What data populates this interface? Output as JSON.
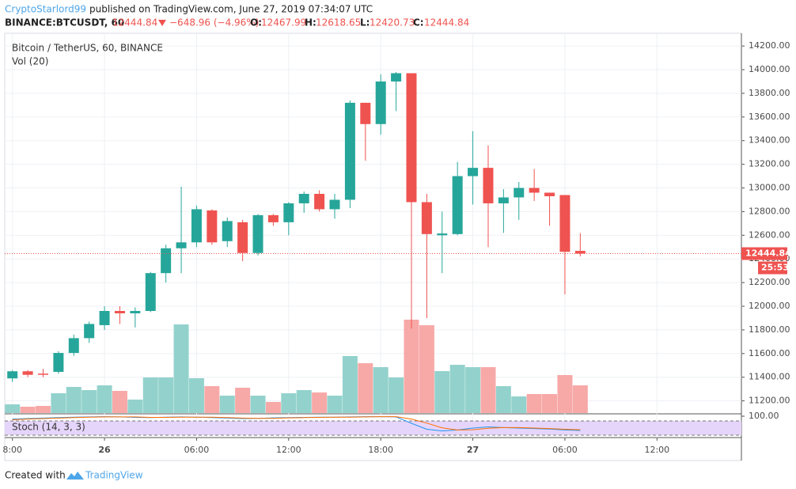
{
  "header": {
    "author": "CryptoStarlord99",
    "published": "published on TradingView.com, June 27, 2019 07:34:07 UTC",
    "symbol": "BINANCE:BTCUSDT, 60",
    "change": "−648.96 (−4.96%)",
    "o_label": "O:",
    "h_label": "H:",
    "l_label": "L:",
    "c_label": "C:"
  },
  "footer": {
    "created": "Created with",
    "brand": "TradingView"
  },
  "chart_data": {
    "type": "candlestick",
    "title": "Bitcoin / TetherUS, 60, BINANCE",
    "x": [
      0,
      1,
      2,
      3,
      4,
      5,
      6,
      7,
      8,
      9,
      10,
      11,
      12,
      13,
      14,
      15,
      16,
      17,
      18,
      19,
      20,
      21,
      22,
      23,
      24,
      25,
      26,
      27,
      28,
      29,
      30,
      31,
      32,
      33,
      34,
      35,
      36,
      37
    ],
    "open": [
      11390,
      11450,
      11430,
      11445,
      11605,
      11730,
      11840,
      11960,
      11940,
      11960,
      12280,
      12490,
      12540,
      12810,
      12550,
      12710,
      12450,
      12770,
      12710,
      12870,
      12950,
      12820,
      12900,
      13720,
      13540,
      13900,
      13970,
      12880,
      12600,
      12610,
      13100,
      13170,
      12870,
      12920,
      13000,
      12960,
      12940,
      12467.99
    ],
    "high": [
      11460,
      11460,
      11470,
      11620,
      11760,
      11870,
      12000,
      12000,
      11990,
      12290,
      12520,
      13010,
      12850,
      12820,
      12750,
      12730,
      12780,
      12780,
      12880,
      12970,
      12980,
      12950,
      13740,
      13720,
      13960,
      13980,
      13970,
      12950,
      12800,
      13220,
      13480,
      13360,
      12990,
      13050,
      13160,
      12960,
      12940,
      12618.65
    ],
    "low": [
      11360,
      11400,
      11400,
      11430,
      11580,
      11690,
      11800,
      11850,
      11820,
      11950,
      12200,
      12280,
      12500,
      12520,
      12500,
      12380,
      12430,
      12680,
      12600,
      12790,
      12800,
      12740,
      12830,
      13230,
      13450,
      13650,
      11810,
      11900,
      12280,
      12600,
      12860,
      12500,
      12620,
      12730,
      12890,
      12680,
      12100,
      12420.73
    ],
    "close": [
      11450,
      11420,
      11420,
      11605,
      11730,
      11850,
      11960,
      11940,
      11960,
      12280,
      12490,
      12540,
      12820,
      12540,
      12720,
      12450,
      12770,
      12710,
      12870,
      12950,
      12820,
      12900,
      13720,
      13540,
      13900,
      13970,
      12880,
      12610,
      12615,
      13100,
      13170,
      12870,
      12920,
      13000,
      12960,
      12930,
      12460,
      12444.84
    ],
    "up_color": "#26a69a",
    "down_color": "#ef5350",
    "volume": {
      "name": "Vol (20)",
      "up_color": "#93d2cc",
      "down_color": "#f7a9a7",
      "values": [
        11,
        8,
        9,
        25,
        33,
        29,
        35,
        28,
        17,
        45,
        45,
        112,
        44,
        34,
        22,
        32,
        22,
        14,
        25,
        29,
        26,
        22,
        72,
        63,
        58,
        45,
        118,
        111,
        53,
        61,
        58,
        58,
        34,
        21,
        24,
        24,
        48,
        35
      ]
    },
    "stoch": {
      "name": "Stoch (14, 3, 3)",
      "ylim": [
        10,
        110
      ],
      "yticks": [
        {
          "value": 100,
          "label": "100.00"
        }
      ],
      "bands": [
        80,
        20
      ],
      "band_color": "#e6d5fa",
      "series": [
        {
          "color": "#2196f3",
          "values": [
            88,
            90,
            92,
            94,
            96,
            97,
            98,
            97,
            95,
            94,
            96,
            97,
            96,
            94,
            92,
            90,
            91,
            93,
            94,
            95,
            96,
            96,
            97,
            98,
            98,
            97,
            70,
            45,
            38,
            42,
            50,
            55,
            52,
            50,
            48,
            46,
            42,
            40
          ]
        },
        {
          "color": "#ff6d00",
          "values": [
            85,
            88,
            90,
            92,
            94,
            96,
            97,
            97,
            97,
            95,
            95,
            96,
            96,
            96,
            94,
            92,
            91,
            91,
            93,
            94,
            95,
            96,
            96,
            97,
            98,
            98,
            88,
            71,
            51,
            42,
            43,
            49,
            52,
            52,
            50,
            48,
            45,
            43
          ]
        }
      ]
    },
    "countdown": "25:53",
    "ylim": [
      11097,
      14308
    ],
    "yticks": [
      {
        "value": 11200,
        "label": "11200.00"
      },
      {
        "value": 11400,
        "label": "11400.00"
      },
      {
        "value": 11600,
        "label": "11600.00"
      },
      {
        "value": 11800,
        "label": "11800.00"
      },
      {
        "value": 12000,
        "label": "12000.00"
      },
      {
        "value": 12200,
        "label": "12200.00"
      },
      {
        "value": 12400,
        "label": "12400.00"
      },
      {
        "value": 12600,
        "label": "12600.00"
      },
      {
        "value": 12800,
        "label": "12800.00"
      },
      {
        "value": 13000,
        "label": "13000.00"
      },
      {
        "value": 13200,
        "label": "13200.00"
      },
      {
        "value": 13400,
        "label": "13400.00"
      },
      {
        "value": 13600,
        "label": "13600.00"
      },
      {
        "value": 13800,
        "label": "13800.00"
      },
      {
        "value": 14000,
        "label": "14000.00"
      },
      {
        "value": 14200,
        "label": "14200.00"
      }
    ],
    "xlim": [
      -0.5,
      47.5
    ],
    "xticks": [
      {
        "value": 0,
        "label": "8:00"
      },
      {
        "value": 6,
        "label": "26"
      },
      {
        "value": 12,
        "label": "06:00"
      },
      {
        "value": 18,
        "label": "12:00"
      },
      {
        "value": 24,
        "label": "18:00"
      },
      {
        "value": 30,
        "label": "27"
      },
      {
        "value": 36,
        "label": "06:00"
      },
      {
        "value": 42,
        "label": "12:00"
      }
    ],
    "grid": true
  }
}
